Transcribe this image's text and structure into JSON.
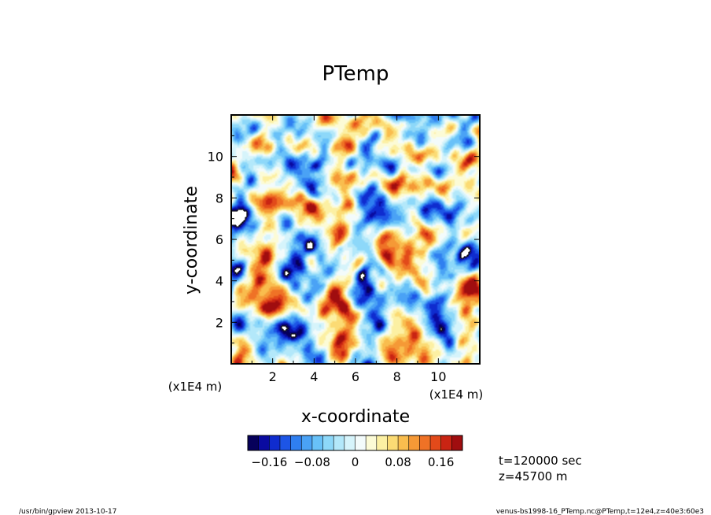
{
  "chart_data": {
    "type": "heatmap",
    "title": "PTemp",
    "xlabel": "x-coordinate",
    "ylabel": "y-coordinate",
    "x_unit_label": "(x1E4 m)",
    "y_unit_label": "(x1E4 m)",
    "xlim": [
      0,
      12
    ],
    "ylim": [
      0,
      12
    ],
    "x_ticks": [
      "2",
      "4",
      "6",
      "8",
      "10"
    ],
    "y_ticks": [
      "2",
      "4",
      "6",
      "8",
      "10"
    ],
    "colorbar": {
      "range": [
        -0.2,
        0.2
      ],
      "step": 0.02,
      "tick_labels": [
        "−0.16",
        "−0.08",
        "0",
        "0.08",
        "0.16"
      ],
      "colors": [
        "#06005a",
        "#0a0ba0",
        "#0f2ccf",
        "#1d55e6",
        "#2f7ff0",
        "#4aa2f5",
        "#68c1f8",
        "#8dd8f9",
        "#b3e8fa",
        "#d6f4fb",
        "#f3fbfb",
        "#fcfbd6",
        "#fcf0a3",
        "#fbdb74",
        "#f9bd4e",
        "#f59936",
        "#ef7226",
        "#e24a1a",
        "#c92413",
        "#a00d0f"
      ]
    },
    "contour_level": -0.2,
    "annotations": [
      "t=120000 sec",
      "z=45700 m"
    ]
  },
  "footer": {
    "left": "/usr/bin/gpview   2013-10-17",
    "right": "venus-bs1998-16_PTemp.nc@PTemp,t=12e4,z=40e3:60e3"
  }
}
